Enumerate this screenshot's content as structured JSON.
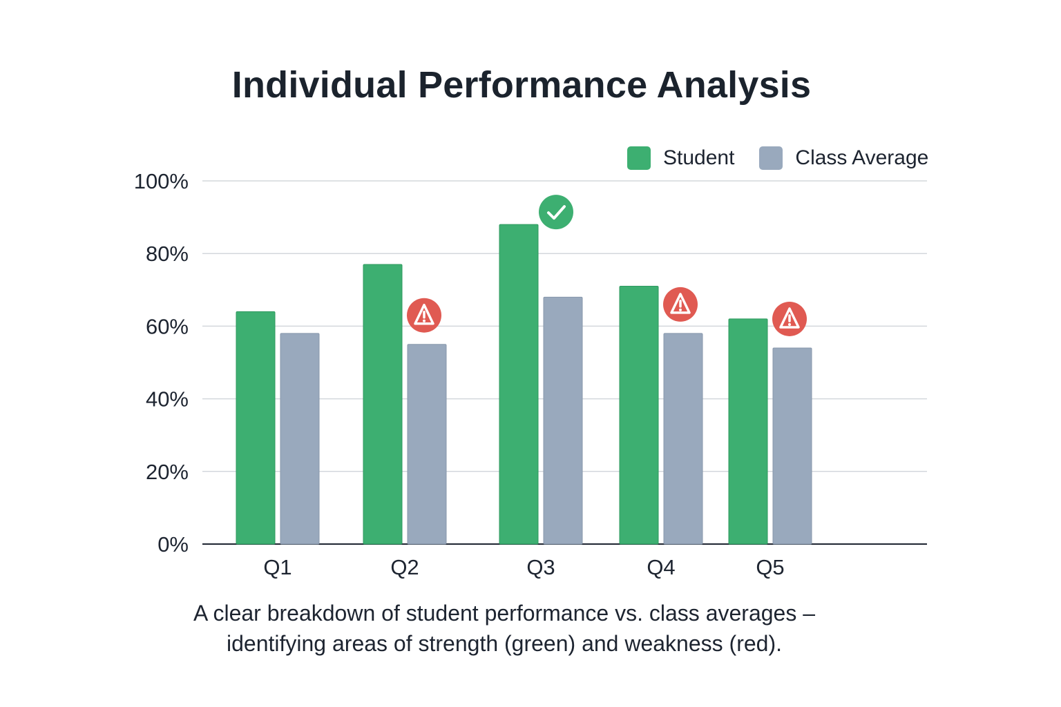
{
  "chart_data": {
    "type": "bar",
    "title": "Individual Performance Analysis",
    "categories": [
      "Q1",
      "Q2",
      "Q3",
      "Q4",
      "Q5"
    ],
    "series": [
      {
        "name": "Student",
        "values": [
          64,
          77,
          88,
          71,
          62
        ],
        "color": "#3daf71"
      },
      {
        "name": "Class Average",
        "values": [
          58,
          55,
          68,
          58,
          54
        ],
        "color": "#99a9bd"
      }
    ],
    "ylim": [
      0,
      100
    ],
    "yticks": [
      "0%",
      "20%",
      "40%",
      "60%",
      "80%",
      "100%"
    ],
    "ytick_values": [
      0,
      20,
      40,
      60,
      80,
      100
    ],
    "grid": true,
    "legend_position": "top-right",
    "annotations": [
      {
        "category": "Q2",
        "type": "weakness",
        "icon": "warning-icon",
        "color": "#e05a52"
      },
      {
        "category": "Q3",
        "type": "strength",
        "icon": "check-icon",
        "color": "#3daf71"
      },
      {
        "category": "Q4",
        "type": "weakness",
        "icon": "warning-icon",
        "color": "#e05a52"
      },
      {
        "category": "Q5",
        "type": "weakness",
        "icon": "warning-icon",
        "color": "#e05a52"
      }
    ]
  },
  "caption": {
    "line1": "A clear breakdown of student performance vs. class averages –",
    "line2": "identifying areas of strength (green) and weakness (red)."
  }
}
